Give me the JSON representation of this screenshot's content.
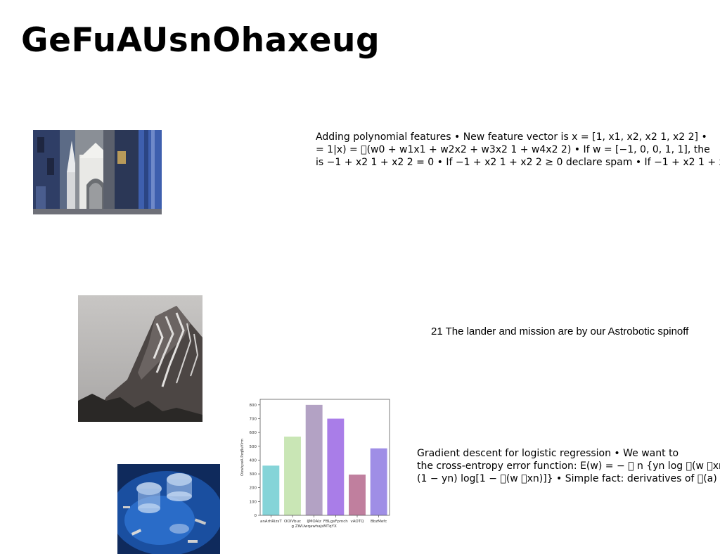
{
  "page": {
    "title": "GeFuAUsnOhaxeug"
  },
  "images": {
    "street": "street-scene-with-white-gate-photo",
    "mountain": "rocky-snow-dusted-mountain-photo",
    "glasses": "crystal-glasses-on-blue-table-photo"
  },
  "text_blocks": {
    "polynomial": [
      "Adding polynomial features • New feature vector is x = [1, x1, x2, x2 1, x2 2] •",
      "= 1|x) = \u0000(w0 + w1x1 + w2x2 + w3x2 1 + w4x2 2) • If w = [−1, 0, 0, 1, 1], the",
      "is −1 + x2 1 + x2 2 = 0 • If −1 + x2 1 + x2 2 ≥ 0 declare spam • If −1 + x2 1 + x2"
    ],
    "lander": "21 The lander and mission are by our Astrobotic spinoff",
    "gradient": [
      "Gradient descent for logistic regression • We want to",
      "the cross-entropy error function: E(w) = − \u0000 n {yn log \u0000(w \u0000xn)",
      "(1 − yn) log[1 − \u0000(w \u0000xn)]} • Simple fact: derivatives of \u0000(a)"
    ]
  },
  "chart_data": {
    "type": "bar",
    "categories": [
      "anArhRizsT",
      "OOlVbuc",
      "IJMOAIz\ng ZWUwqawhajsMTqYX",
      "FBLgsFpmch",
      "vAOTQ",
      "BbzMefc"
    ],
    "values": [
      360,
      570,
      800,
      700,
      295,
      485
    ],
    "colors": [
      "#85d4d8",
      "#c9e6b5",
      "#b3a2c4",
      "#a97de8",
      "#c07f9e",
      "#9f8ee6"
    ],
    "title": "",
    "xlabel": "",
    "ylabel": "OizahywA PzqBuYIrm",
    "ylim": [
      0,
      840
    ],
    "yticks": [
      0,
      100,
      200,
      300,
      400,
      500,
      600,
      700,
      800
    ],
    "grid": false
  }
}
